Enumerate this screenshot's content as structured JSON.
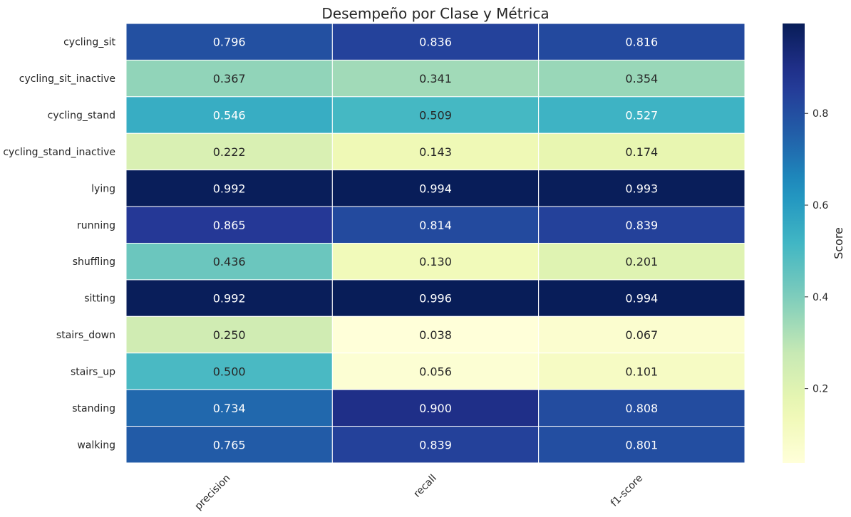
{
  "chart_data": {
    "type": "heatmap",
    "title": "Desempeño por Clase y Métrica",
    "rows": [
      "cycling_sit",
      "cycling_sit_inactive",
      "cycling_stand",
      "cycling_stand_inactive",
      "lying",
      "running",
      "shuffling",
      "sitting",
      "stairs_down",
      "stairs_up",
      "standing",
      "walking"
    ],
    "columns": [
      "precision",
      "recall",
      "f1-score"
    ],
    "values": [
      [
        0.796,
        0.836,
        0.816
      ],
      [
        0.367,
        0.341,
        0.354
      ],
      [
        0.546,
        0.509,
        0.527
      ],
      [
        0.222,
        0.143,
        0.174
      ],
      [
        0.992,
        0.994,
        0.993
      ],
      [
        0.865,
        0.814,
        0.839
      ],
      [
        0.436,
        0.13,
        0.201
      ],
      [
        0.992,
        0.996,
        0.994
      ],
      [
        0.25,
        0.038,
        0.067
      ],
      [
        0.5,
        0.056,
        0.101
      ],
      [
        0.734,
        0.9,
        0.808
      ],
      [
        0.765,
        0.839,
        0.801
      ]
    ],
    "value_format": "3 decimals",
    "colormap": "YlGnBu",
    "colorbar": {
      "label": "Score",
      "range": [
        0.038,
        0.996
      ],
      "ticks": [
        "0.2",
        "0.4",
        "0.6",
        "0.8"
      ]
    },
    "colors": {
      "text_dark": "#262626",
      "text_light": "#ffffff",
      "cell_border": "#ffffff"
    }
  }
}
